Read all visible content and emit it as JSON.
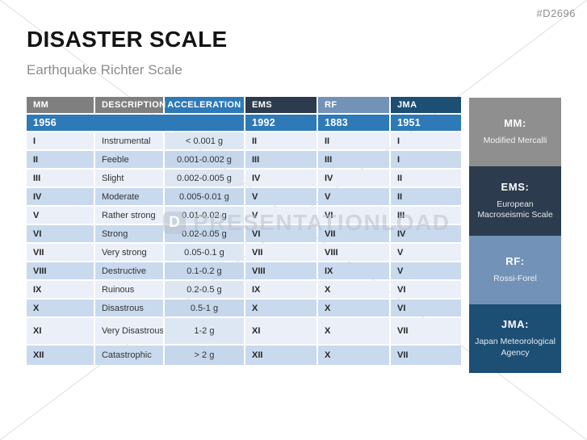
{
  "page": {
    "code": "#D2696",
    "title": "DISASTER SCALE",
    "subtitle": "Earthquake Richter Scale"
  },
  "watermark": {
    "logo_letter": "D",
    "text": "PRESENTATIONLOAD"
  },
  "table": {
    "columns": [
      {
        "key": "mm",
        "label": "MM",
        "header_bg": "#7f7f7f"
      },
      {
        "key": "description",
        "label": "DESCRIPTION",
        "header_bg": "#7f7f7f"
      },
      {
        "key": "acceleration",
        "label": "ACCELERATION",
        "header_bg": "#2e79b8"
      },
      {
        "key": "ems",
        "label": "EMS",
        "header_bg": "#2c3c4e"
      },
      {
        "key": "rf",
        "label": "RF",
        "header_bg": "#7392b7"
      },
      {
        "key": "jma",
        "label": "JMA",
        "header_bg": "#1d4e74"
      }
    ],
    "year_row": {
      "mm": "1956",
      "ems": "1992",
      "rf": "1883",
      "jma": "1951"
    },
    "rows": [
      {
        "mm": "I",
        "description": "Instrumental",
        "acceleration": "< 0.001 g",
        "ems": "II",
        "rf": "II",
        "jma": "I"
      },
      {
        "mm": "II",
        "description": "Feeble",
        "acceleration": "0.001-0.002 g",
        "ems": "III",
        "rf": "III",
        "jma": "I"
      },
      {
        "mm": "III",
        "description": "Slight",
        "acceleration": "0.002-0.005 g",
        "ems": "IV",
        "rf": "IV",
        "jma": "II"
      },
      {
        "mm": "IV",
        "description": "Moderate",
        "acceleration": "0.005-0.01 g",
        "ems": "V",
        "rf": "V",
        "jma": "II"
      },
      {
        "mm": "V",
        "description": "Rather strong",
        "acceleration": "0.01-0.02 g",
        "ems": "V",
        "rf": "VI",
        "jma": "III"
      },
      {
        "mm": "VI",
        "description": "Strong",
        "acceleration": "0.02-0.05 g",
        "ems": "VI",
        "rf": "VII",
        "jma": "IV"
      },
      {
        "mm": "VII",
        "description": "Very strong",
        "acceleration": "0.05-0.1 g",
        "ems": "VII",
        "rf": "VIII",
        "jma": "V"
      },
      {
        "mm": "VIII",
        "description": "Destructive",
        "acceleration": "0.1-0.2 g",
        "ems": "VIII",
        "rf": "IX",
        "jma": "V"
      },
      {
        "mm": "IX",
        "description": "Ruinous",
        "acceleration": "0.2-0.5 g",
        "ems": "IX",
        "rf": "X",
        "jma": "VI"
      },
      {
        "mm": "X",
        "description": "Disastrous",
        "acceleration": "0.5-1 g",
        "ems": "X",
        "rf": "X",
        "jma": "VI"
      },
      {
        "mm": "XI",
        "description": "Very Disastrous",
        "acceleration": "1-2 g",
        "ems": "XI",
        "rf": "X",
        "jma": "VII",
        "tall": true
      },
      {
        "mm": "XII",
        "description": "Catastrophic",
        "acceleration": "> 2 g",
        "ems": "XII",
        "rf": "X",
        "jma": "VII"
      }
    ]
  },
  "legend": {
    "boxes": [
      {
        "title": "MM:",
        "subtitle": "Modified Mercalli",
        "bg": "#8f8f8f"
      },
      {
        "title": "EMS:",
        "subtitle": "European Macroseismic Scale",
        "bg": "#2c3c4e"
      },
      {
        "title": "RF:",
        "subtitle": "Rossi-Forel",
        "bg": "#7392b7"
      },
      {
        "title": "JMA:",
        "subtitle": "Japan Meteorological Agency",
        "bg": "#1d4e74"
      }
    ]
  },
  "colors": {
    "year_bg": "#2e79b8",
    "row_odd": "#eaeff8",
    "row_even": "#c9daee",
    "acc_odd": "#dde7f3",
    "acc_even": "#c6d7ec",
    "header_gray": "#7f7f7f",
    "header_navy": "#2c3c4e",
    "header_steel": "#7392b7",
    "header_deepblue": "#1d4e74"
  }
}
